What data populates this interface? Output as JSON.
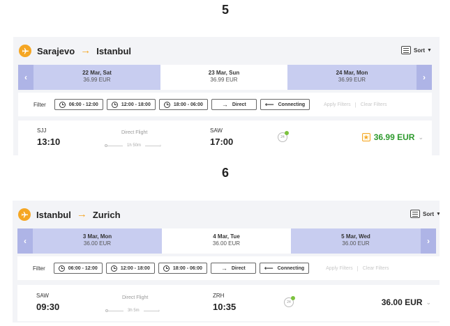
{
  "step_labels": [
    "5",
    "6"
  ],
  "colors": {
    "accent": "#f5a623",
    "best_price": "#2d9a2d",
    "regular_price": "#222222",
    "date_side": "#c8cdf0",
    "date_arrow": "#aeb4e6"
  },
  "sort": {
    "label": "Sort",
    "icon": "list-sort-icon"
  },
  "filter": {
    "label": "Filter",
    "chips": [
      "06:00 - 12:00",
      "12:00 - 18:00",
      "18:00 - 06:00",
      "Direct",
      "Connecting"
    ],
    "apply": "Apply Filters",
    "separator": "|",
    "clear": "Clear Filters"
  },
  "panels": [
    {
      "route": {
        "from": "Sarajevo",
        "arrow": "→",
        "to": "Istanbul"
      },
      "dates": [
        {
          "date": "22 Mar, Sat",
          "price": "36.99 EUR",
          "selected": false
        },
        {
          "date": "23 Mar, Sun",
          "price": "36.99 EUR",
          "selected": true
        },
        {
          "date": "24 Mar, Mon",
          "price": "36.99 EUR",
          "selected": false
        }
      ],
      "flight": {
        "dep_code": "SJJ",
        "dep_time": "13:10",
        "type": "Direct Flight",
        "duration": "1h 50m",
        "arr_code": "SAW",
        "arr_time": "17:00",
        "badge": "24",
        "price": "36.99 EUR",
        "best_price": true
      }
    },
    {
      "route": {
        "from": "Istanbul",
        "arrow": "→",
        "to": "Zurich"
      },
      "dates": [
        {
          "date": "3 Mar, Mon",
          "price": "36.00 EUR",
          "selected": false
        },
        {
          "date": "4 Mar, Tue",
          "price": "36.00 EUR",
          "selected": true
        },
        {
          "date": "5 Mar, Wed",
          "price": "36.00 EUR",
          "selected": false
        }
      ],
      "flight": {
        "dep_code": "SAW",
        "dep_time": "09:30",
        "type": "Direct Flight",
        "duration": "3h 5m",
        "arr_code": "ZRH",
        "arr_time": "10:35",
        "badge": "24",
        "price": "36.00 EUR",
        "best_price": false
      }
    }
  ]
}
